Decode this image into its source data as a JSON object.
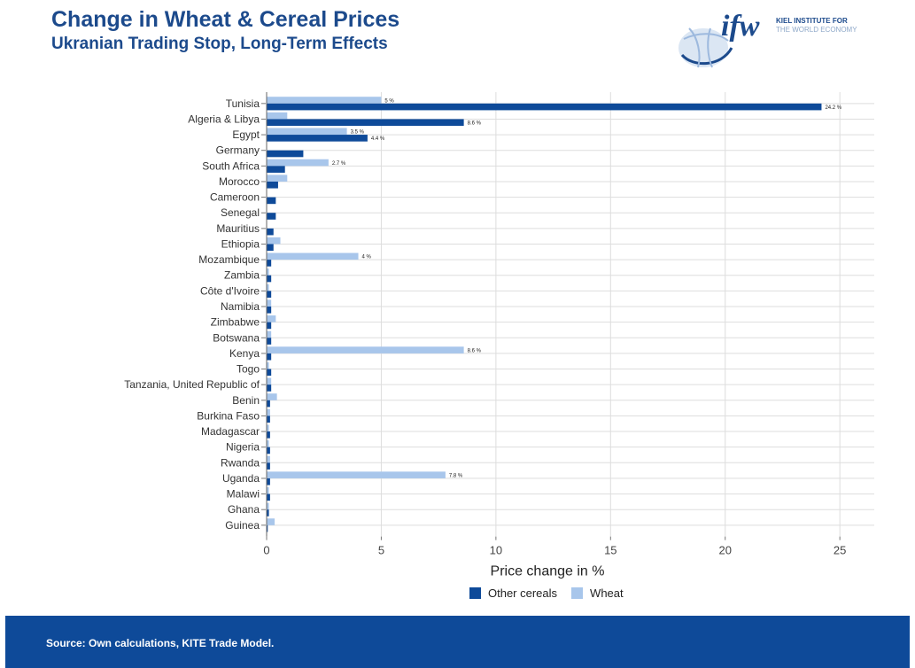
{
  "header": {
    "title": "Change in Wheat & Cereal Prices",
    "subtitle": "Ukranian Trading Stop, Long-Term Effects"
  },
  "logo": {
    "mark": "ifw",
    "line1": "KIEL INSTITUTE FOR",
    "line2": "THE WORLD ECONOMY"
  },
  "colors": {
    "title": "#1c4a8c",
    "other_cereals": "#0e4a99",
    "wheat": "#a8c6eb",
    "footer": "#0e4a99",
    "grid": "#dddddd"
  },
  "chart_data": {
    "type": "bar",
    "orientation": "horizontal",
    "categories": [
      "Tunisia",
      "Algeria & Libya",
      "Egypt",
      "Germany",
      "South Africa",
      "Morocco",
      "Cameroon",
      "Senegal",
      "Mauritius",
      "Ethiopia",
      "Mozambique",
      "Zambia",
      "Côte d'Ivoire",
      "Namibia",
      "Zimbabwe",
      "Botswana",
      "Kenya",
      "Togo",
      "Tanzania, United Republic of",
      "Benin",
      "Burkina Faso",
      "Madagascar",
      "Nigeria",
      "Rwanda",
      "Uganda",
      "Malawi",
      "Ghana",
      "Guinea"
    ],
    "series": [
      {
        "name": "Other cereals",
        "values": [
          24.2,
          8.6,
          4.4,
          1.6,
          0.8,
          0.5,
          0.4,
          0.4,
          0.3,
          0.3,
          0.2,
          0.2,
          0.2,
          0.2,
          0.2,
          0.2,
          0.2,
          0.2,
          0.2,
          0.15,
          0.15,
          0.15,
          0.15,
          0.15,
          0.15,
          0.15,
          0.1,
          0.05
        ],
        "data_labels": [
          "24.2 %",
          "8.6 %",
          "4.4 %",
          "",
          "",
          "",
          "",
          "",
          "",
          "",
          "",
          "",
          "",
          "",
          "",
          "",
          "",
          "",
          "",
          "",
          "",
          "",
          "",
          "",
          "",
          "",
          "",
          ""
        ]
      },
      {
        "name": "Wheat",
        "values": [
          5.0,
          0.9,
          3.5,
          0.0,
          2.7,
          0.9,
          0.0,
          0.0,
          0.0,
          0.6,
          4.0,
          0.1,
          0.1,
          0.2,
          0.4,
          0.2,
          8.6,
          0.1,
          0.2,
          0.45,
          0.15,
          0.1,
          0.1,
          0.15,
          7.8,
          0.1,
          0.1,
          0.35
        ],
        "data_labels": [
          "5 %",
          "",
          "3.5 %",
          "",
          "2.7 %",
          "",
          "",
          "",
          "",
          "",
          "4 %",
          "",
          "",
          "",
          "",
          "",
          "8.6 %",
          "",
          "",
          "",
          "",
          "",
          "",
          "",
          "7.8 %",
          "",
          "",
          ""
        ]
      }
    ],
    "xlabel": "Price change in %",
    "xlim": [
      0,
      26.5
    ],
    "xticks": [
      0,
      5,
      10,
      15,
      20,
      25
    ],
    "grid": true,
    "legend_position": "bottom"
  },
  "footer": {
    "source": "Source: Own calculations, KITE Trade Model."
  }
}
